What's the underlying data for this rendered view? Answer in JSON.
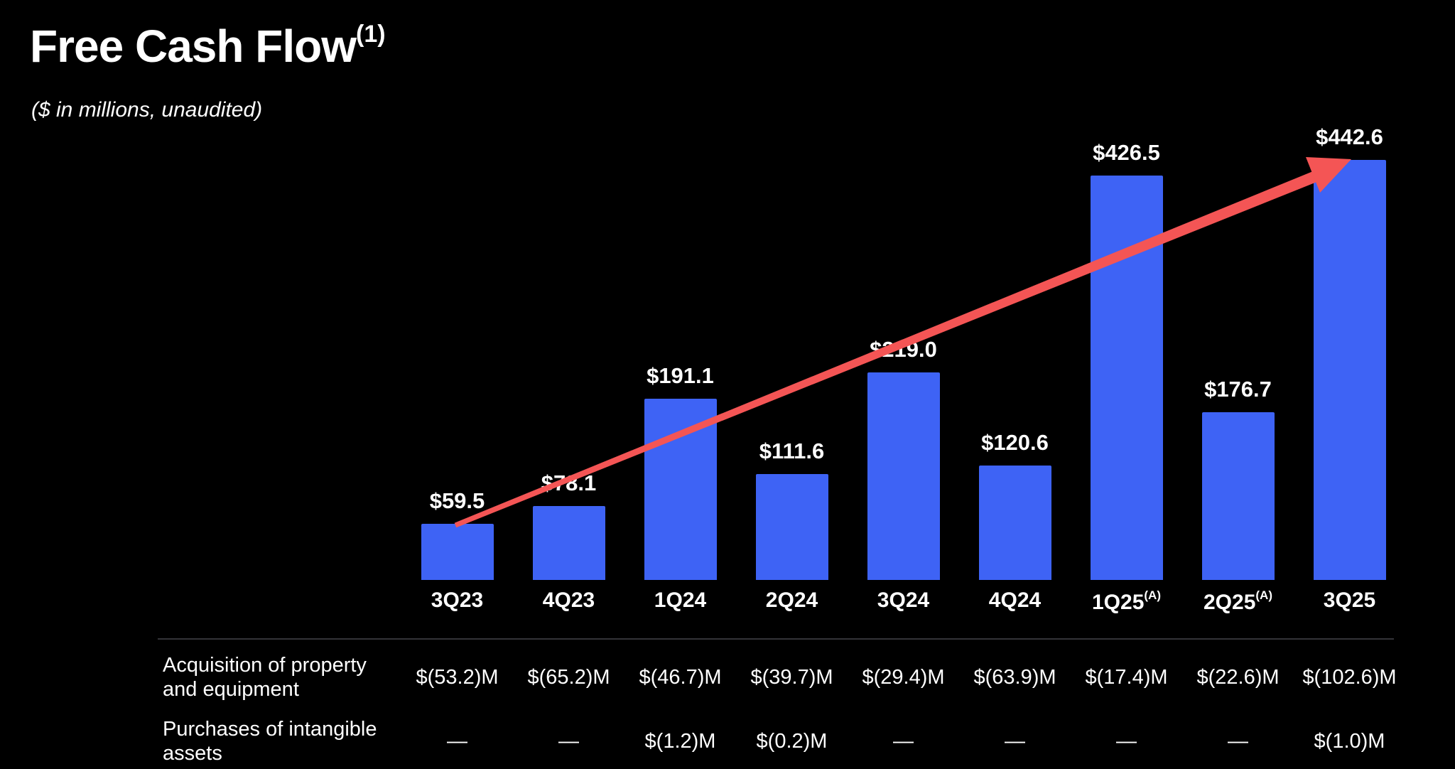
{
  "page": {
    "title": "Free Cash Flow",
    "title_superscript": "(1)",
    "subtitle": "($ in millions, unaudited)"
  },
  "chart_data": {
    "type": "bar",
    "title": "Free Cash Flow ($ in millions, unaudited)",
    "categories": [
      "3Q23",
      "4Q23",
      "1Q24",
      "2Q24",
      "3Q24",
      "4Q24",
      "1Q25",
      "2Q25",
      "3Q25"
    ],
    "values": [
      59.5,
      78.1,
      191.1,
      111.6,
      219.0,
      120.6,
      426.5,
      176.7,
      442.6
    ],
    "value_labels": [
      "$59.5",
      "$78.1",
      "$191.1",
      "$111.6",
      "$219.0",
      "$120.6",
      "$426.5",
      "$176.7",
      "$442.6"
    ],
    "category_superscripts": [
      "",
      "",
      "",
      "",
      "",
      "",
      "(A)",
      "(A)",
      ""
    ],
    "ylim": [
      0,
      460
    ],
    "xlabel": "",
    "ylabel": "",
    "grid": false,
    "legend": "none",
    "bar_color": "#3e63f5",
    "arrow_color": "#f45555",
    "background_color": "#000000",
    "annotations": [
      "upward trend arrow from 3Q23 bar top to 3Q25 bar top"
    ]
  },
  "table": {
    "rows": [
      {
        "label": "Acquisition of property and equipment",
        "values": [
          "$(53.2)M",
          "$(65.2)M",
          "$(46.7)M",
          "$(39.7)M",
          "$(29.4)M",
          "$(63.9)M",
          "$(17.4)M",
          "$(22.6)M",
          "$(102.6)M"
        ]
      },
      {
        "label": "Purchases of intangible assets",
        "values": [
          "—",
          "—",
          "$(1.2)M",
          "$(0.2)M",
          "—",
          "—",
          "—",
          "—",
          "$(1.0)M"
        ]
      }
    ]
  }
}
